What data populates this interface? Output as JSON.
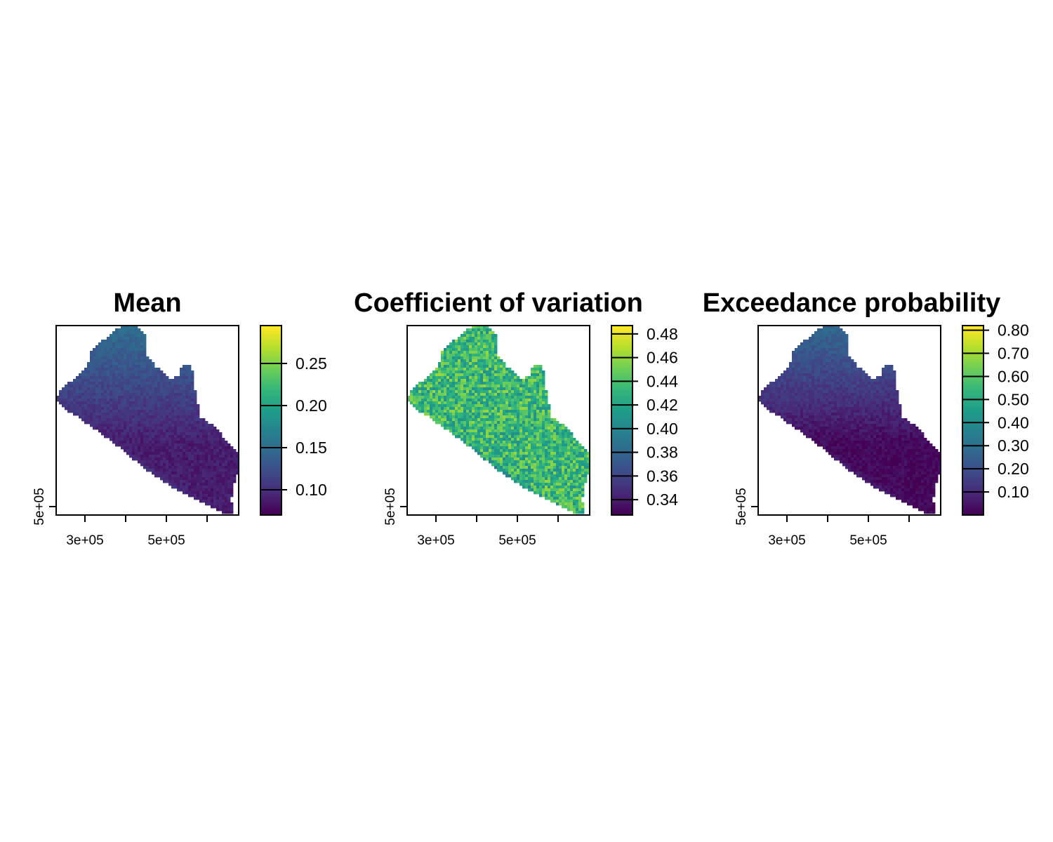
{
  "panels": [
    {
      "title": "Mean",
      "x_ticks": [
        "3e+05",
        "5e+05"
      ],
      "y_ticks": [
        "5e+05"
      ],
      "legend": {
        "min": 0.07,
        "max": 0.295,
        "ticks": [
          "0.10",
          "0.15",
          "0.20",
          "0.25"
        ],
        "tick_values": [
          0.1,
          0.15,
          0.2,
          0.25
        ]
      },
      "pattern": "mean"
    },
    {
      "title": "Coefficient of variation",
      "x_ticks": [
        "3e+05",
        "5e+05"
      ],
      "y_ticks": [
        "5e+05"
      ],
      "legend": {
        "min": 0.327,
        "max": 0.487,
        "ticks": [
          "0.34",
          "0.36",
          "0.38",
          "0.40",
          "0.42",
          "0.44",
          "0.46",
          "0.48"
        ],
        "tick_values": [
          0.34,
          0.36,
          0.38,
          0.4,
          0.42,
          0.44,
          0.46,
          0.48
        ]
      },
      "pattern": "cv"
    },
    {
      "title": "Exceedance probability",
      "x_ticks": [
        "3e+05",
        "5e+05"
      ],
      "y_ticks": [
        "5e+05"
      ],
      "legend": {
        "min": 0.0,
        "max": 0.82,
        "ticks": [
          "0.10",
          "0.20",
          "0.30",
          "0.40",
          "0.50",
          "0.60",
          "0.70",
          "0.80"
        ],
        "tick_values": [
          0.1,
          0.2,
          0.3,
          0.4,
          0.5,
          0.6,
          0.7,
          0.8
        ]
      },
      "pattern": "exceed"
    }
  ],
  "colormap": [
    "#440154",
    "#482878",
    "#3e4a89",
    "#31688e",
    "#26828e",
    "#1f9e89",
    "#35b779",
    "#6ece58",
    "#b5de2b",
    "#fde725"
  ]
}
